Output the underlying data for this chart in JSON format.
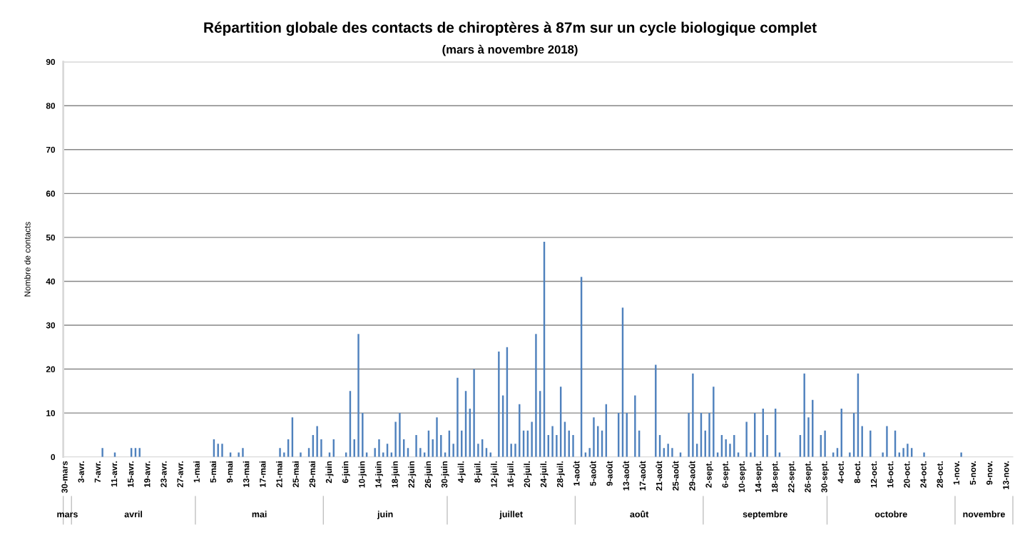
{
  "chart_data": {
    "type": "bar",
    "title": "Répartition globale des contacts de chiroptères à 87m sur un cycle biologique complet",
    "subtitle": "(mars à novembre 2018)",
    "ylabel": "Nombre de contacts",
    "color": "#4f81bd",
    "grid": "y",
    "legend": false,
    "ylim": [
      0,
      90
    ],
    "yticks": [
      0,
      10,
      20,
      30,
      40,
      50,
      60,
      70,
      80,
      90
    ],
    "xlim": [
      "2018-03-29T12:00",
      "2018-11-14T12:00"
    ],
    "xticks": [
      {
        "value": "2018-03-30",
        "label": "30-mars"
      },
      {
        "value": "2018-04-03",
        "label": "3-avr."
      },
      {
        "value": "2018-04-07",
        "label": "7-avr."
      },
      {
        "value": "2018-04-11",
        "label": "11-avr."
      },
      {
        "value": "2018-04-15",
        "label": "15-avr."
      },
      {
        "value": "2018-04-19",
        "label": "19-avr."
      },
      {
        "value": "2018-04-23",
        "label": "23-avr."
      },
      {
        "value": "2018-04-27",
        "label": "27-avr."
      },
      {
        "value": "2018-05-01",
        "label": "1-mai"
      },
      {
        "value": "2018-05-05",
        "label": "5-mai"
      },
      {
        "value": "2018-05-09",
        "label": "9-mai"
      },
      {
        "value": "2018-05-13",
        "label": "13-mai"
      },
      {
        "value": "2018-05-17",
        "label": "17-mai"
      },
      {
        "value": "2018-05-21",
        "label": "21-mai"
      },
      {
        "value": "2018-05-25",
        "label": "25-mai"
      },
      {
        "value": "2018-05-29",
        "label": "29-mai"
      },
      {
        "value": "2018-06-02",
        "label": "2-juin"
      },
      {
        "value": "2018-06-06",
        "label": "6-juin"
      },
      {
        "value": "2018-06-10",
        "label": "10-juin"
      },
      {
        "value": "2018-06-14",
        "label": "14-juin"
      },
      {
        "value": "2018-06-18",
        "label": "18-juin"
      },
      {
        "value": "2018-06-22",
        "label": "22-juin"
      },
      {
        "value": "2018-06-26",
        "label": "26-juin"
      },
      {
        "value": "2018-06-30",
        "label": "30-juin"
      },
      {
        "value": "2018-07-04",
        "label": "4-juil."
      },
      {
        "value": "2018-07-08",
        "label": "8-juil."
      },
      {
        "value": "2018-07-12",
        "label": "12-juil."
      },
      {
        "value": "2018-07-16",
        "label": "16-juil."
      },
      {
        "value": "2018-07-20",
        "label": "20-juil."
      },
      {
        "value": "2018-07-24",
        "label": "24-juil."
      },
      {
        "value": "2018-07-28",
        "label": "28-juil."
      },
      {
        "value": "2018-08-01",
        "label": "1-août"
      },
      {
        "value": "2018-08-05",
        "label": "5-août"
      },
      {
        "value": "2018-08-09",
        "label": "9-août"
      },
      {
        "value": "2018-08-13",
        "label": "13-août"
      },
      {
        "value": "2018-08-17",
        "label": "17-août"
      },
      {
        "value": "2018-08-21",
        "label": "21-août"
      },
      {
        "value": "2018-08-25",
        "label": "25-août"
      },
      {
        "value": "2018-08-29",
        "label": "29-août"
      },
      {
        "value": "2018-09-02",
        "label": "2-sept."
      },
      {
        "value": "2018-09-06",
        "label": "6-sept."
      },
      {
        "value": "2018-09-10",
        "label": "10-sept."
      },
      {
        "value": "2018-09-14",
        "label": "14-sept."
      },
      {
        "value": "2018-09-18",
        "label": "18-sept."
      },
      {
        "value": "2018-09-22",
        "label": "22-sept."
      },
      {
        "value": "2018-09-26",
        "label": "26-sept."
      },
      {
        "value": "2018-09-30",
        "label": "30-sept."
      },
      {
        "value": "2018-10-04",
        "label": "4-oct."
      },
      {
        "value": "2018-10-08",
        "label": "8-oct."
      },
      {
        "value": "2018-10-12",
        "label": "12-oct."
      },
      {
        "value": "2018-10-16",
        "label": "16-oct."
      },
      {
        "value": "2018-10-20",
        "label": "20-oct."
      },
      {
        "value": "2018-10-24",
        "label": "24-oct."
      },
      {
        "value": "2018-10-28",
        "label": "28-oct."
      },
      {
        "value": "2018-11-01",
        "label": "1-nov."
      },
      {
        "value": "2018-11-05",
        "label": "5-nov."
      },
      {
        "value": "2018-11-09",
        "label": "9-nov."
      },
      {
        "value": "2018-11-13",
        "label": "13-nov."
      }
    ],
    "annotations": [
      "mars",
      "avril",
      "mai",
      "juin",
      "juillet",
      "août",
      "septembre",
      "octobre",
      "novembre"
    ],
    "x": [
      "2018-03-30",
      "2018-03-31",
      "2018-04-01",
      "2018-04-02",
      "2018-04-03",
      "2018-04-04",
      "2018-04-05",
      "2018-04-06",
      "2018-04-07",
      "2018-04-08",
      "2018-04-09",
      "2018-04-10",
      "2018-04-11",
      "2018-04-12",
      "2018-04-13",
      "2018-04-14",
      "2018-04-15",
      "2018-04-16",
      "2018-04-17",
      "2018-04-18",
      "2018-04-19",
      "2018-04-20",
      "2018-04-21",
      "2018-04-22",
      "2018-04-23",
      "2018-04-24",
      "2018-04-25",
      "2018-04-26",
      "2018-04-27",
      "2018-04-28",
      "2018-04-29",
      "2018-04-30",
      "2018-05-01",
      "2018-05-02",
      "2018-05-03",
      "2018-05-04",
      "2018-05-05",
      "2018-05-06",
      "2018-05-07",
      "2018-05-08",
      "2018-05-09",
      "2018-05-10",
      "2018-05-11",
      "2018-05-12",
      "2018-05-13",
      "2018-05-14",
      "2018-05-15",
      "2018-05-16",
      "2018-05-17",
      "2018-05-18",
      "2018-05-19",
      "2018-05-20",
      "2018-05-21",
      "2018-05-22",
      "2018-05-23",
      "2018-05-24",
      "2018-05-25",
      "2018-05-26",
      "2018-05-27",
      "2018-05-28",
      "2018-05-29",
      "2018-05-30",
      "2018-05-31",
      "2018-06-01",
      "2018-06-02",
      "2018-06-03",
      "2018-06-04",
      "2018-06-05",
      "2018-06-06",
      "2018-06-07",
      "2018-06-08",
      "2018-06-09",
      "2018-06-10",
      "2018-06-11",
      "2018-06-12",
      "2018-06-13",
      "2018-06-14",
      "2018-06-15",
      "2018-06-16",
      "2018-06-17",
      "2018-06-18",
      "2018-06-19",
      "2018-06-20",
      "2018-06-21",
      "2018-06-22",
      "2018-06-23",
      "2018-06-24",
      "2018-06-25",
      "2018-06-26",
      "2018-06-27",
      "2018-06-28",
      "2018-06-29",
      "2018-06-30",
      "2018-07-01",
      "2018-07-02",
      "2018-07-03",
      "2018-07-04",
      "2018-07-05",
      "2018-07-06",
      "2018-07-07",
      "2018-07-08",
      "2018-07-09",
      "2018-07-10",
      "2018-07-11",
      "2018-07-12",
      "2018-07-13",
      "2018-07-14",
      "2018-07-15",
      "2018-07-16",
      "2018-07-17",
      "2018-07-18",
      "2018-07-19",
      "2018-07-20",
      "2018-07-21",
      "2018-07-22",
      "2018-07-23",
      "2018-07-24",
      "2018-07-25",
      "2018-07-26",
      "2018-07-27",
      "2018-07-28",
      "2018-07-29",
      "2018-07-30",
      "2018-07-31",
      "2018-08-01",
      "2018-08-02",
      "2018-08-03",
      "2018-08-04",
      "2018-08-05",
      "2018-08-06",
      "2018-08-07",
      "2018-08-08",
      "2018-08-09",
      "2018-08-10",
      "2018-08-11",
      "2018-08-12",
      "2018-08-13",
      "2018-08-14",
      "2018-08-15",
      "2018-08-16",
      "2018-08-17",
      "2018-08-18",
      "2018-08-19",
      "2018-08-20",
      "2018-08-21",
      "2018-08-22",
      "2018-08-23",
      "2018-08-24",
      "2018-08-25",
      "2018-08-26",
      "2018-08-27",
      "2018-08-28",
      "2018-08-29",
      "2018-08-30",
      "2018-08-31",
      "2018-09-01",
      "2018-09-02",
      "2018-09-03",
      "2018-09-04",
      "2018-09-05",
      "2018-09-06",
      "2018-09-07",
      "2018-09-08",
      "2018-09-09",
      "2018-09-10",
      "2018-09-11",
      "2018-09-12",
      "2018-09-13",
      "2018-09-14",
      "2018-09-15",
      "2018-09-16",
      "2018-09-17",
      "2018-09-18",
      "2018-09-19",
      "2018-09-20",
      "2018-09-21",
      "2018-09-22",
      "2018-09-23",
      "2018-09-24",
      "2018-09-25",
      "2018-09-26",
      "2018-09-27",
      "2018-09-28",
      "2018-09-29",
      "2018-09-30",
      "2018-10-01",
      "2018-10-02",
      "2018-10-03",
      "2018-10-04",
      "2018-10-05",
      "2018-10-06",
      "2018-10-07",
      "2018-10-08",
      "2018-10-09",
      "2018-10-10",
      "2018-10-11",
      "2018-10-12",
      "2018-10-13",
      "2018-10-14",
      "2018-10-15",
      "2018-10-16",
      "2018-10-17",
      "2018-10-18",
      "2018-10-19",
      "2018-10-20",
      "2018-10-21",
      "2018-10-22",
      "2018-10-23",
      "2018-10-24",
      "2018-10-25",
      "2018-10-26",
      "2018-10-27",
      "2018-10-28",
      "2018-10-29",
      "2018-10-30",
      "2018-10-31",
      "2018-11-01",
      "2018-11-02",
      "2018-11-03",
      "2018-11-04",
      "2018-11-05",
      "2018-11-06",
      "2018-11-07",
      "2018-11-08",
      "2018-11-09",
      "2018-11-10",
      "2018-11-11",
      "2018-11-12",
      "2018-11-13",
      "2018-11-14"
    ],
    "values": [
      0,
      0,
      0,
      0,
      0,
      0,
      0,
      0,
      0,
      2,
      0,
      0,
      1,
      0,
      0,
      0,
      2,
      2,
      2,
      0,
      0,
      0,
      0,
      0,
      0,
      0,
      0,
      0,
      0,
      0,
      0,
      0,
      0,
      0,
      0,
      0,
      4,
      3,
      3,
      0,
      1,
      0,
      1,
      2,
      0,
      0,
      0,
      0,
      0,
      0,
      0,
      0,
      2,
      1,
      4,
      9,
      0,
      1,
      0,
      2,
      5,
      7,
      4,
      0,
      1,
      4,
      0,
      0,
      1,
      15,
      4,
      28,
      10,
      1,
      0,
      2,
      4,
      1,
      3,
      1,
      8,
      10,
      4,
      2,
      0,
      5,
      2,
      1,
      6,
      4,
      9,
      5,
      1,
      6,
      3,
      18,
      6,
      15,
      11,
      20,
      3,
      4,
      2,
      1,
      0,
      24,
      14,
      25,
      3,
      3,
      12,
      6,
      6,
      8,
      28,
      15,
      49,
      5,
      7,
      5,
      16,
      8,
      6,
      5,
      0,
      41,
      1,
      2,
      9,
      7,
      6,
      12,
      0,
      0,
      10,
      34,
      10,
      0,
      14,
      6,
      0,
      0,
      0,
      21,
      5,
      2,
      3,
      2,
      0,
      1,
      0,
      10,
      19,
      3,
      10,
      6,
      10,
      16,
      1,
      5,
      4,
      3,
      5,
      1,
      0,
      8,
      1,
      10,
      0,
      11,
      5,
      0,
      11,
      1,
      0,
      0,
      0,
      0,
      5,
      19,
      9,
      13,
      0,
      5,
      6,
      0,
      1,
      2,
      11,
      0,
      1,
      10,
      19,
      7,
      0,
      6,
      0,
      0,
      1,
      7,
      0,
      6,
      1,
      2,
      3,
      2,
      0,
      0,
      1,
      0,
      0,
      0,
      0,
      0,
      0,
      0,
      0,
      1,
      0,
      0,
      0,
      0,
      0,
      0,
      0,
      0,
      0,
      0,
      0,
      0
    ]
  }
}
